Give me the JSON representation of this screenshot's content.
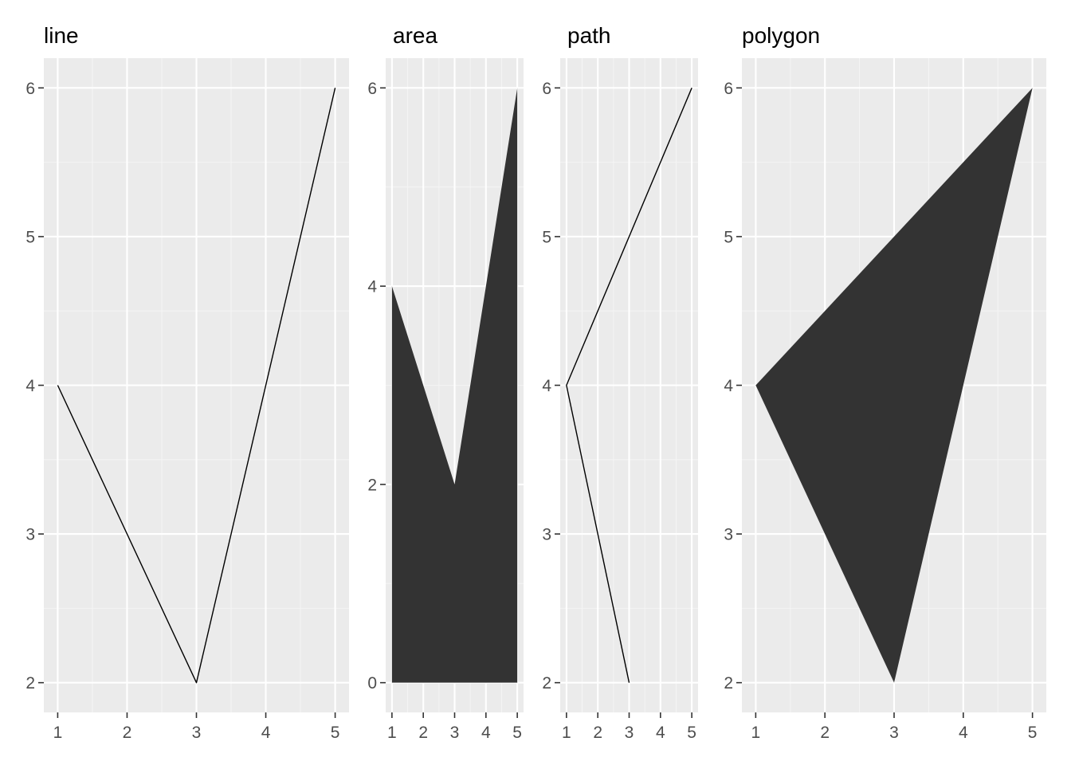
{
  "colors": {
    "panel_background": "#EBEBEB",
    "grid_major": "#FFFFFF",
    "grid_minor": "#F4F4F4",
    "tick_mark": "#333333",
    "tick_text": "#4D4D4D",
    "line_stroke": "#000000",
    "fill": "#333333"
  },
  "chart_data": [
    {
      "type": "line",
      "title": "line",
      "xlabel": "",
      "ylabel": "",
      "x": [
        1,
        3,
        5
      ],
      "series": [
        {
          "values": [
            4,
            2,
            6
          ]
        }
      ],
      "xlim": [
        1,
        5
      ],
      "ylim": [
        2,
        6
      ],
      "xticks": [
        1,
        2,
        3,
        4,
        5
      ],
      "yticks": [
        2,
        3,
        4,
        5,
        6
      ],
      "grid": true,
      "legend": "none"
    },
    {
      "type": "area",
      "title": "area",
      "xlabel": "",
      "ylabel": "",
      "x": [
        1,
        3,
        5
      ],
      "series": [
        {
          "values": [
            4,
            2,
            6
          ]
        }
      ],
      "xlim": [
        1,
        5
      ],
      "ylim": [
        0,
        6
      ],
      "xticks": [
        1,
        2,
        3,
        4,
        5
      ],
      "yticks": [
        0,
        2,
        4,
        6
      ],
      "grid": true,
      "legend": "none"
    },
    {
      "type": "path",
      "title": "path",
      "xlabel": "",
      "ylabel": "",
      "x": [
        3,
        1,
        5
      ],
      "series": [
        {
          "values": [
            2,
            4,
            6
          ]
        }
      ],
      "xlim": [
        1,
        5
      ],
      "ylim": [
        2,
        6
      ],
      "xticks": [
        1,
        2,
        3,
        4,
        5
      ],
      "yticks": [
        2,
        3,
        4,
        5,
        6
      ],
      "grid": true,
      "legend": "none"
    },
    {
      "type": "polygon",
      "title": "polygon",
      "xlabel": "",
      "ylabel": "",
      "x": [
        1,
        3,
        5
      ],
      "series": [
        {
          "values": [
            4,
            2,
            6
          ]
        }
      ],
      "xlim": [
        1,
        5
      ],
      "ylim": [
        2,
        6
      ],
      "xticks": [
        1,
        2,
        3,
        4,
        5
      ],
      "yticks": [
        2,
        3,
        4,
        5,
        6
      ],
      "grid": true,
      "legend": "none"
    }
  ]
}
